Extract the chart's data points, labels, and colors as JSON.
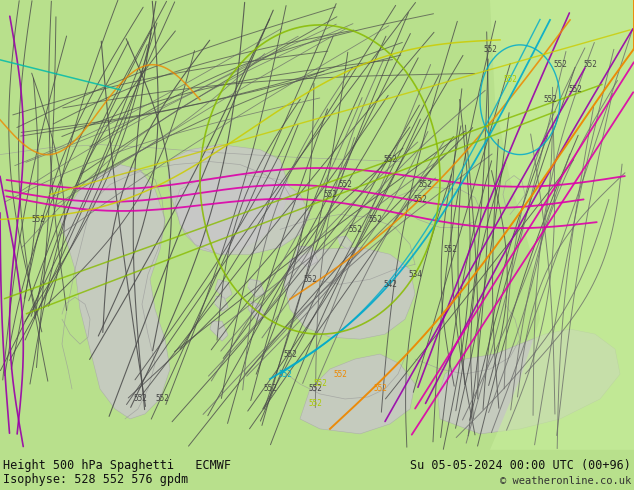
{
  "title_left": "Height 500 hPa Spaghetti   ECMWF",
  "title_right": "Su 05-05-2024 00:00 UTC (00+96)",
  "subtitle_left": "Isophyse: 528 552 576 gpdm",
  "subtitle_right": "© weatheronline.co.uk",
  "bg_color_main": "#b4dh78",
  "land_green": "#b8e08c",
  "land_light_green": "#c8ec9c",
  "gray_region": "#c8c8c8",
  "gray_light": "#d8d8d8",
  "footer_bg": "#c0dc88",
  "border_color": "#999999",
  "figsize": [
    6.34,
    4.9
  ],
  "dpi": 100,
  "line_colors": {
    "dark_gray": "#4a4a4a",
    "mid_gray": "#666666",
    "light_gray": "#888888",
    "purple": "#9900aa",
    "magenta": "#dd00aa",
    "pink": "#ff44aa",
    "red": "#dd2200",
    "orange": "#ee8800",
    "yellow": "#cccc00",
    "yellow_green": "#88bb00",
    "cyan": "#00aacc",
    "teal": "#00bbaa",
    "blue": "#0044cc",
    "dark_blue": "#000088"
  }
}
